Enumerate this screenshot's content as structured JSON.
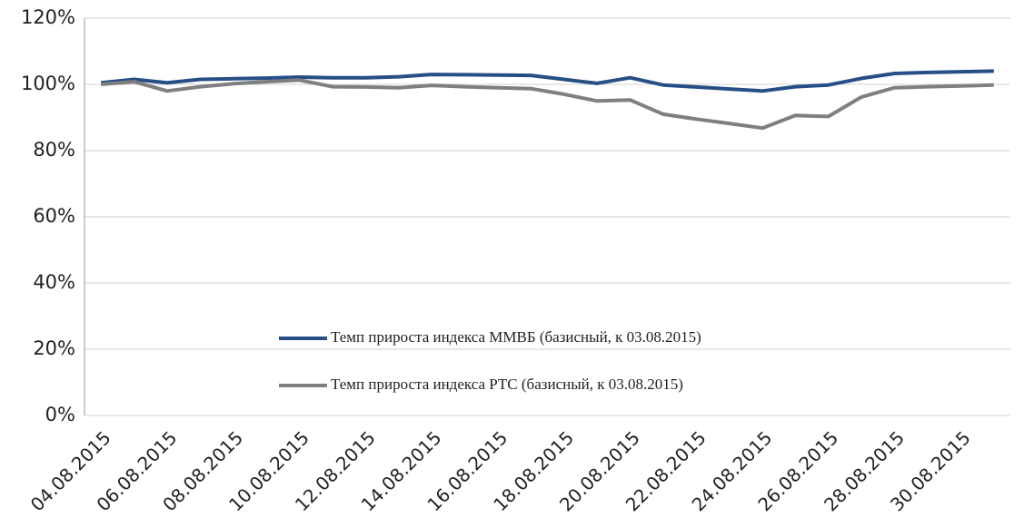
{
  "chart_data": {
    "type": "line",
    "categories": [
      "04.08.2015",
      null,
      "06.08.2015",
      null,
      "08.08.2015",
      null,
      "10.08.2015",
      null,
      "12.08.2015",
      null,
      "14.08.2015",
      null,
      "16.08.2015",
      null,
      "18.08.2015",
      null,
      "20.08.2015",
      null,
      "22.08.2015",
      null,
      "24.08.2015",
      null,
      "26.08.2015",
      null,
      "28.08.2015",
      null,
      "30.08.2015",
      null
    ],
    "series": [
      {
        "name": "Темп прироста индекса ММВБ (базисный, к 03.08.2015)",
        "color": "#264f86",
        "values": [
          100.5,
          101.5,
          100.5,
          101.5,
          101.7,
          101.9,
          102.2,
          102,
          102,
          102.3,
          103,
          102.9,
          102.8,
          102.7,
          101.5,
          100.3,
          102,
          99.8,
          99.2,
          98.6,
          98,
          99.3,
          99.8,
          101.8,
          103.3,
          103.6,
          103.8,
          104
        ]
      },
      {
        "name": "Темп прироста индекса РТС (базисный, к 03.08.2015)",
        "color": "#7f7f7f",
        "values": [
          100,
          100.8,
          98,
          99.3,
          100.2,
          100.8,
          101.3,
          99.3,
          99.2,
          99,
          99.7,
          99.3,
          99,
          98.7,
          97,
          95,
          95.3,
          91,
          89.5,
          88.2,
          86.8,
          90.6,
          90.3,
          96.2,
          99,
          99.3,
          99.5,
          99.8
        ]
      }
    ],
    "ylim": [
      0,
      120
    ],
    "yticks": [
      {
        "value": 0,
        "label": "0%"
      },
      {
        "value": 20,
        "label": "20%"
      },
      {
        "value": 40,
        "label": "40%"
      },
      {
        "value": 60,
        "label": "60%"
      },
      {
        "value": 80,
        "label": "80%"
      },
      {
        "value": 100,
        "label": "100%"
      },
      {
        "value": 120,
        "label": "120%"
      }
    ],
    "grid": true
  }
}
